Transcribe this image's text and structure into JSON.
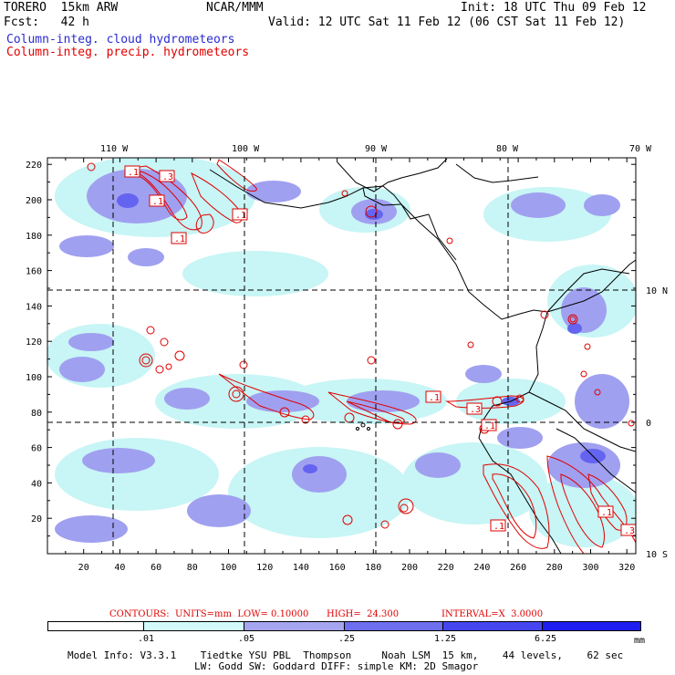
{
  "header": {
    "model": "TORERO  15km ARW",
    "org": "NCAR/MMM",
    "init": "Init: 18 UTC Thu 09 Feb 12",
    "fcst": "Fcst:   42 h",
    "valid": "Valid: 12 UTC Sat 11 Feb 12 (06 CST Sat 11 Feb 12)",
    "field_cloud": "Column-integ. cloud hydrometeors",
    "field_precip": "Column-integ. precip. hydrometeors"
  },
  "map": {
    "lon_labels": [
      "110 W",
      "100 W",
      "90 W",
      "80 W",
      "70 W"
    ],
    "lat_labels": [
      "10 N",
      "0",
      "10 S"
    ],
    "x_ticks": [
      "20",
      "40",
      "60",
      "80",
      "100",
      "120",
      "140",
      "160",
      "180",
      "200",
      "220",
      "240",
      "260",
      "280",
      "300",
      "320"
    ],
    "y_ticks": [
      "20",
      "40",
      "60",
      "80",
      "100",
      "120",
      "140",
      "160",
      "180",
      "200",
      "220"
    ],
    "contour_labels": [
      ".1",
      ".3",
      ".1",
      ".1",
      ".1",
      ".1",
      ".1",
      ".3",
      ".1",
      ".1",
      ".3"
    ],
    "colors": {
      "cloud_light": "#c8f5f5",
      "cloud_mid": "#a0a0f0",
      "cloud_dark": "#6464f0",
      "precip_contour": "#e00000"
    }
  },
  "contour_info": {
    "contours": "CONTOURS:  UNITS=mm  LOW= 0.10000",
    "high": "HIGH=  24.300",
    "interval": "INTERVAL=X  3.0000"
  },
  "legend": {
    "ticks": [
      ".01",
      ".05",
      ".25",
      "1.25",
      "6.25"
    ],
    "unit": "mm",
    "colors": [
      "#ffffff",
      "#d2fafa",
      "#a5a5f0",
      "#6e6ef0",
      "#4646f0",
      "#1e1ef0"
    ]
  },
  "footer": {
    "line1": "Model Info: V3.3.1    Tiedtke YSU PBL  Thompson     Noah LSM  15 km,    44 levels,    62 sec",
    "line2": "LW: Godd SW: Goddard DIFF: simple KM: 2D Smagor"
  }
}
